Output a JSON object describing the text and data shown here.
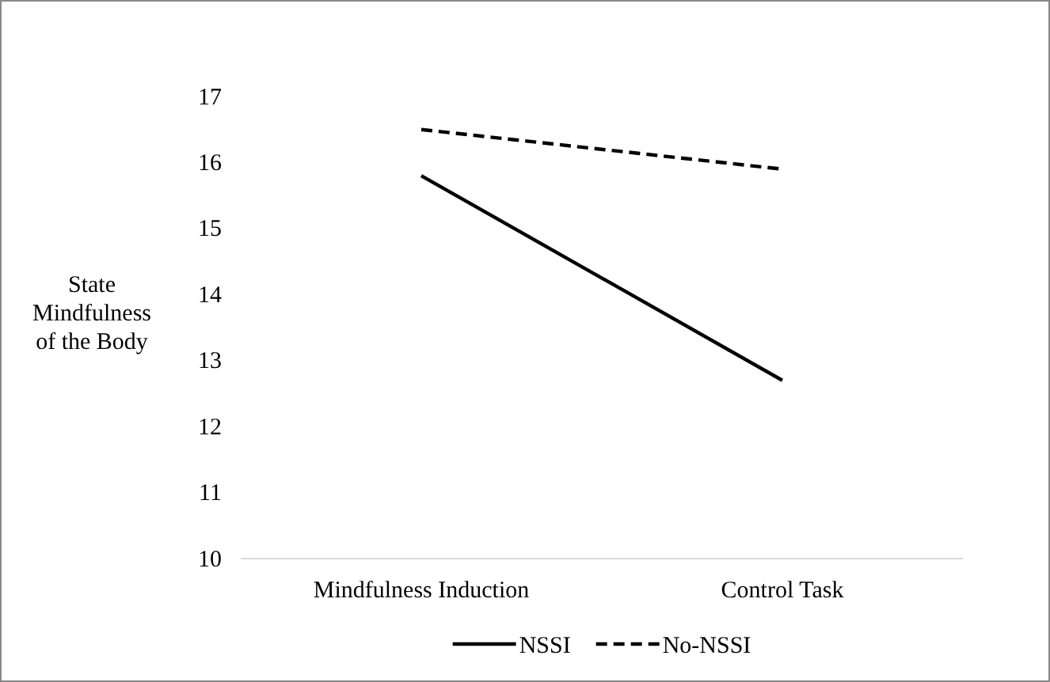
{
  "chart_data": {
    "type": "line",
    "ylabel": "State Mindfulness of the Body",
    "categories": [
      "Mindfulness Induction",
      "Control Task"
    ],
    "series": [
      {
        "name": "NSSI",
        "color": "#000000",
        "values": [
          15.8,
          12.7
        ],
        "line_style": "solid"
      },
      {
        "name": "No-NSSI",
        "color": "#000000",
        "values": [
          16.5,
          15.9
        ],
        "line_style": "dashed"
      }
    ],
    "ylim": [
      10,
      17
    ],
    "yticks": [
      10,
      11,
      12,
      13,
      14,
      15,
      16,
      17
    ],
    "grid": false,
    "legend": "bottom",
    "marker": "none"
  }
}
